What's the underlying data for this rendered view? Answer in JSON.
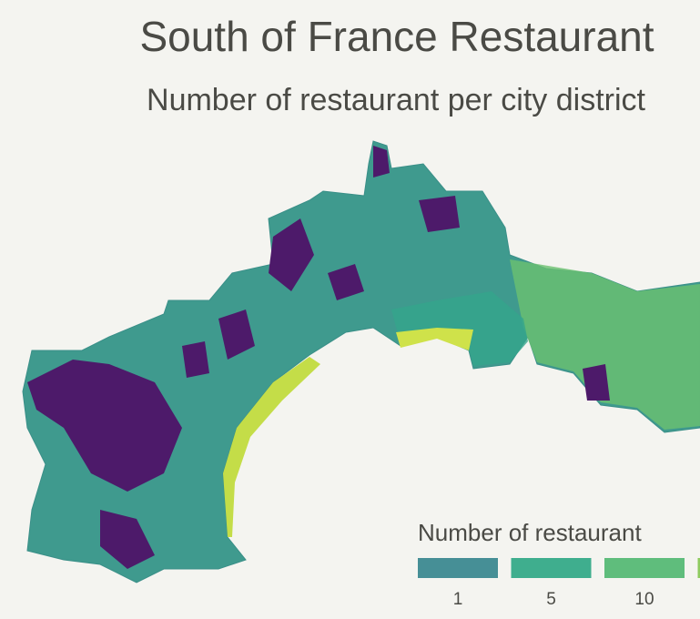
{
  "header": {
    "title": "South of France Restaurant",
    "subtitle": "Number of restaurant per city district"
  },
  "legend": {
    "title": "Number of restaurant",
    "items": [
      {
        "value": 1,
        "color": "#468f96"
      },
      {
        "value": 5,
        "color": "#3fae8e"
      },
      {
        "value": 10,
        "color": "#5fbd7c"
      },
      {
        "value": null,
        "color": "#8fcb5f"
      }
    ]
  }
}
